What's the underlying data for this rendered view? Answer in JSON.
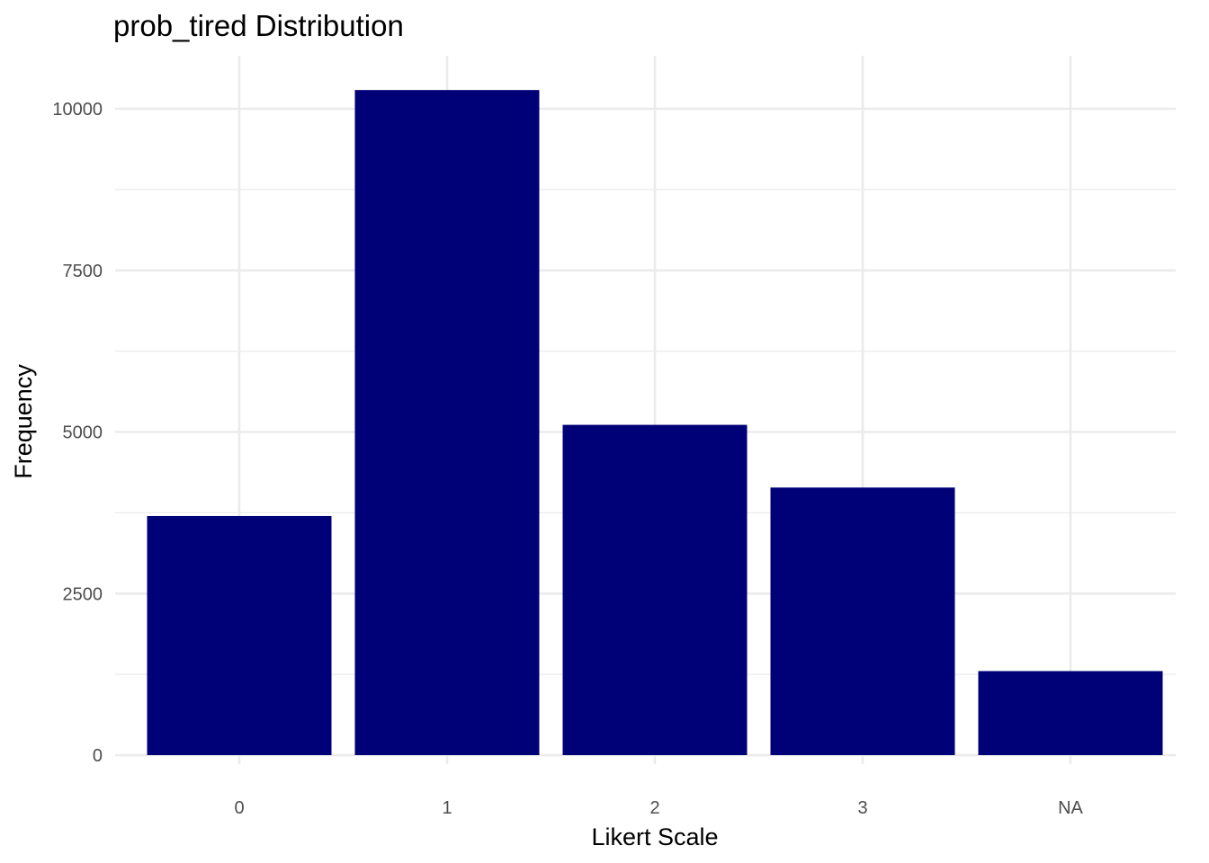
{
  "chart_data": {
    "type": "bar",
    "title": "prob_tired Distribution",
    "xlabel": "Likert Scale",
    "ylabel": "Frequency",
    "categories": [
      "0",
      "1",
      "2",
      "3",
      "NA"
    ],
    "values": [
      3700,
      10290,
      5110,
      4140,
      1300
    ],
    "ylim": [
      0,
      10800
    ],
    "yticks": [
      0,
      2500,
      5000,
      7500,
      10000
    ],
    "ytick_labels": [
      "0",
      "2500",
      "5000",
      "7500",
      "10000"
    ],
    "bar_color": "#000077",
    "grid": true,
    "legend": "none"
  }
}
